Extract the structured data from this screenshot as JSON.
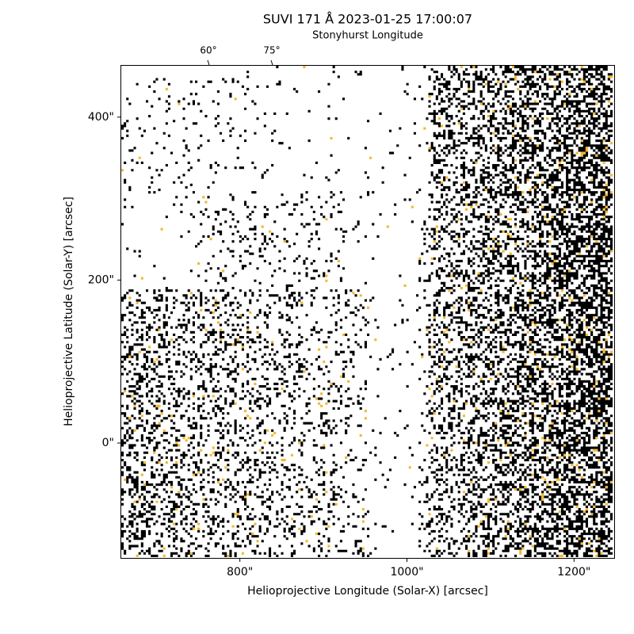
{
  "chart_data": {
    "type": "image",
    "title": "SUVI 171 Å 2023-01-25 17:00:07",
    "top_axis_label": "Stonyhurst Longitude",
    "top_ticks": [
      "60°",
      "75°"
    ],
    "xlabel": "Helioprojective Longitude (Solar-X) [arcsec]",
    "ylabel": "Helioprojective Latitude (Solar-Y) [arcsec]",
    "xlim": [
      658,
      1249
    ],
    "ylim": [
      -141,
      463
    ],
    "xticks": [
      {
        "value": 800,
        "label": "800\""
      },
      {
        "value": 1000,
        "label": "1000\""
      },
      {
        "value": 1200,
        "label": "1200\""
      }
    ],
    "yticks": [
      {
        "value": 0,
        "label": "0\""
      },
      {
        "value": 200,
        "label": "200\""
      },
      {
        "value": 400,
        "label": "400\""
      }
    ]
  }
}
